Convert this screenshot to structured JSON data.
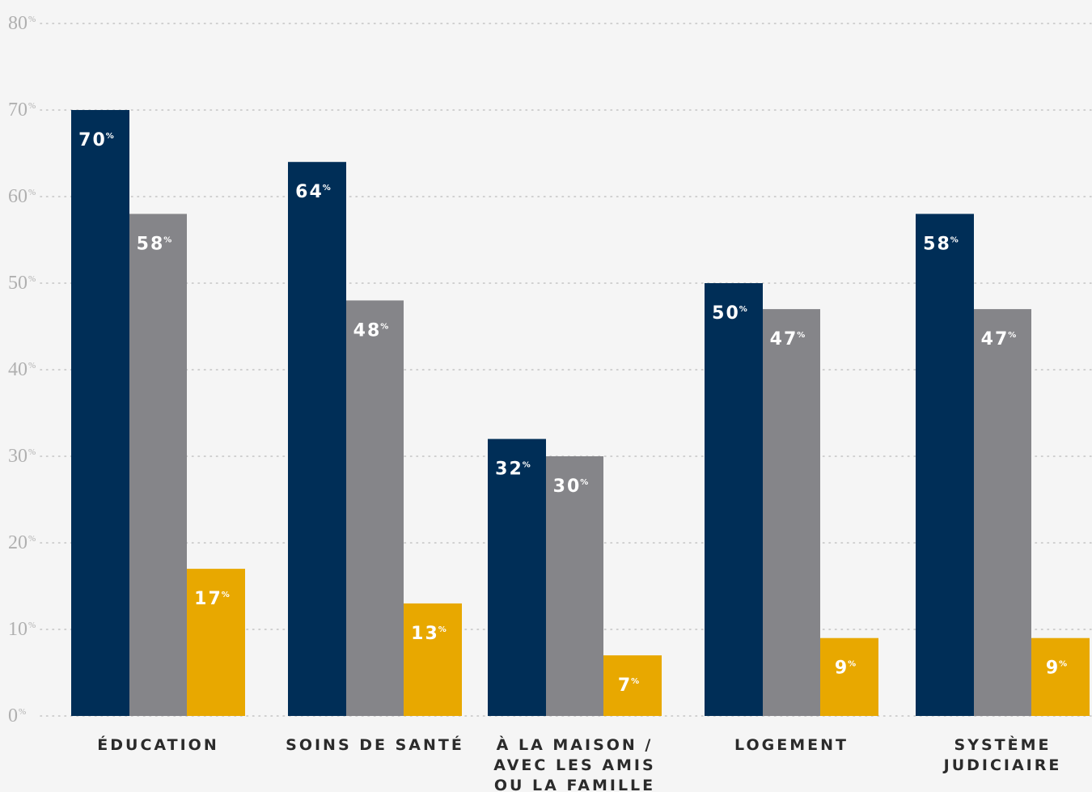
{
  "chart_data": {
    "type": "bar",
    "categories": [
      [
        "ÉDUCATION"
      ],
      [
        "SOINS DE SANTÉ"
      ],
      [
        "À LA MAISON /",
        "AVEC LES AMIS",
        "OU LA FAMILLE"
      ],
      [
        "LOGEMENT"
      ],
      [
        "SYSTÈME",
        "JUDICIAIRE"
      ]
    ],
    "series": [
      {
        "color": "#002e57",
        "values": [
          70,
          64,
          32,
          50,
          58
        ]
      },
      {
        "color": "#858589",
        "values": [
          58,
          48,
          30,
          47,
          47
        ]
      },
      {
        "color": "#e8a800",
        "values": [
          17,
          13,
          7,
          9,
          9
        ]
      }
    ],
    "value_labels": [
      [
        "70",
        "64",
        "32",
        "50",
        "58"
      ],
      [
        "58",
        "48",
        "30",
        "47",
        "47"
      ],
      [
        "17",
        "13",
        "7",
        "9",
        "9"
      ]
    ],
    "value_suffix": "%",
    "yticks": [
      {
        "value": 0,
        "label": "0"
      },
      {
        "value": 10,
        "label": "10"
      },
      {
        "value": 20,
        "label": "20"
      },
      {
        "value": 30,
        "label": "30"
      },
      {
        "value": 40,
        "label": "40"
      },
      {
        "value": 50,
        "label": "50"
      },
      {
        "value": 60,
        "label": "60"
      },
      {
        "value": 70,
        "label": "70"
      },
      {
        "value": 80,
        "label": "80"
      }
    ],
    "ytick_suffix": "%",
    "ylim": [
      0,
      80
    ],
    "grid": true,
    "legend": "none",
    "colors": {
      "background": "#f5f5f5",
      "grid": "#c4c4c4",
      "axis_text": "#b0b0b0",
      "category_text": "#2b2b2b",
      "label_text": "#ffffff"
    }
  }
}
